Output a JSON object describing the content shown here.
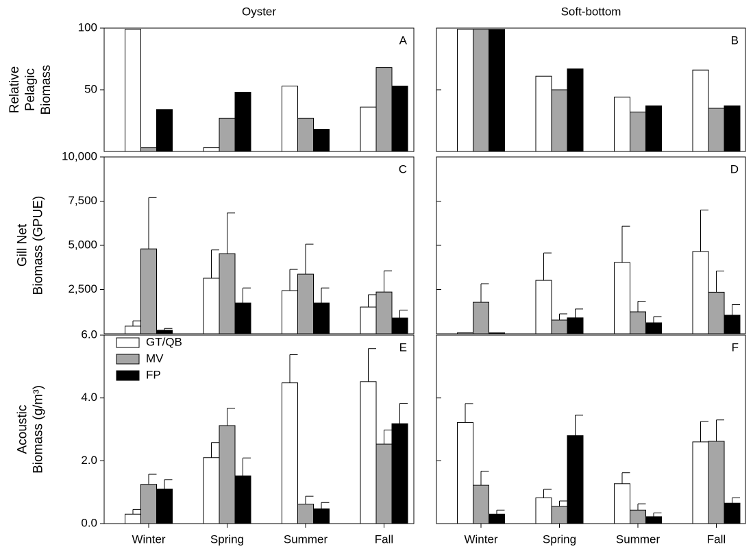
{
  "chart_data": [
    {
      "type": "bar",
      "title": "Oyster",
      "panel_label": "A",
      "ylabel": [
        "Relative",
        "Pelagic",
        "Biomass"
      ],
      "ylim": [
        0,
        100
      ],
      "yticks": [
        50,
        100
      ],
      "show_tick_labels": true,
      "series": [
        {
          "color": "#ffffff",
          "values": [
            99,
            3,
            53,
            36
          ]
        },
        {
          "color": "#a6a6a6",
          "values": [
            3,
            27,
            27,
            68
          ]
        },
        {
          "color": "#000000",
          "values": [
            34,
            48,
            18,
            53
          ]
        }
      ]
    },
    {
      "type": "bar",
      "title": "Soft-bottom",
      "panel_label": "B",
      "ylim": [
        0,
        100
      ],
      "yticks": [
        50,
        100
      ],
      "show_tick_labels": false,
      "series": [
        {
          "color": "#ffffff",
          "values": [
            99,
            61,
            44,
            66
          ]
        },
        {
          "color": "#a6a6a6",
          "values": [
            99,
            50,
            32,
            35
          ]
        },
        {
          "color": "#000000",
          "values": [
            99,
            67,
            37,
            37
          ]
        }
      ]
    },
    {
      "type": "bar",
      "panel_label": "C",
      "ylabel": [
        "Gill Net",
        "Biomass (GPUE)"
      ],
      "ylim": [
        0,
        10000
      ],
      "yticks": [
        {
          "value": 2500,
          "label": "2,500"
        },
        {
          "value": 5000,
          "label": "5,000"
        },
        {
          "value": 7500,
          "label": "7,500"
        },
        {
          "value": 10000,
          "label": "10,000"
        }
      ],
      "show_tick_labels": true,
      "series": [
        {
          "color": "#ffffff",
          "values": [
            430,
            3140,
            2440,
            1510
          ],
          "errors": [
            300,
            1600,
            1200,
            700
          ]
        },
        {
          "color": "#a6a6a6",
          "values": [
            4800,
            4530,
            3370,
            2360
          ],
          "errors": [
            2900,
            2300,
            1700,
            1200
          ]
        },
        {
          "color": "#000000",
          "values": [
            200,
            1740,
            1740,
            890
          ],
          "errors": [
            100,
            850,
            850,
            450
          ]
        }
      ]
    },
    {
      "type": "bar",
      "panel_label": "D",
      "ylim": [
        0,
        10000
      ],
      "yticks": [
        2500,
        5000,
        7500,
        10000
      ],
      "show_tick_labels": false,
      "series": [
        {
          "color": "#ffffff",
          "values": [
            50,
            3020,
            4030,
            4650
          ],
          "errors": [
            0,
            1550,
            2050,
            2350
          ]
        },
        {
          "color": "#a6a6a6",
          "values": [
            1780,
            775,
            1240,
            2350
          ],
          "errors": [
            1050,
            350,
            600,
            1200
          ]
        },
        {
          "color": "#000000",
          "values": [
            50,
            900,
            620,
            1050
          ],
          "errors": [
            0,
            500,
            350,
            600
          ]
        }
      ]
    },
    {
      "type": "bar",
      "panel_label": "E",
      "ylabel": [
        "Acoustic",
        "Biomass (g/m³)"
      ],
      "categories": [
        "Winter",
        "Spring",
        "Summer",
        "Fall"
      ],
      "legend": "upper left",
      "ylim": [
        0,
        6
      ],
      "yticks": [
        {
          "value": 0,
          "label": "0.0"
        },
        {
          "value": 2,
          "label": "2.0"
        },
        {
          "value": 4,
          "label": "4.0"
        },
        {
          "value": 6,
          "label": "6.0"
        }
      ],
      "show_tick_labels": true,
      "series": [
        {
          "name": "GT/QB",
          "color": "#ffffff",
          "values": [
            0.3,
            2.1,
            4.48,
            4.52
          ],
          "errors": [
            0.15,
            0.48,
            0.9,
            1.05
          ]
        },
        {
          "name": "MV",
          "color": "#a6a6a6",
          "values": [
            1.25,
            3.12,
            0.62,
            2.53
          ],
          "errors": [
            0.32,
            0.55,
            0.25,
            0.45
          ]
        },
        {
          "name": "FP",
          "color": "#000000",
          "values": [
            1.1,
            1.52,
            0.47,
            3.18
          ],
          "errors": [
            0.3,
            0.57,
            0.2,
            0.65
          ]
        }
      ]
    },
    {
      "type": "bar",
      "panel_label": "F",
      "categories": [
        "Winter",
        "Spring",
        "Summer",
        "Fall"
      ],
      "ylim": [
        0,
        6
      ],
      "yticks": [
        2,
        4,
        6
      ],
      "show_tick_labels": false,
      "series": [
        {
          "color": "#ffffff",
          "values": [
            3.22,
            0.82,
            1.27,
            2.6
          ],
          "errors": [
            0.6,
            0.27,
            0.35,
            0.65
          ]
        },
        {
          "color": "#a6a6a6",
          "values": [
            1.22,
            0.55,
            0.43,
            2.62
          ],
          "errors": [
            0.45,
            0.17,
            0.2,
            0.68
          ]
        },
        {
          "color": "#000000",
          "values": [
            0.3,
            2.8,
            0.22,
            0.65
          ],
          "errors": [
            0.13,
            0.65,
            0.12,
            0.17
          ]
        }
      ]
    }
  ]
}
